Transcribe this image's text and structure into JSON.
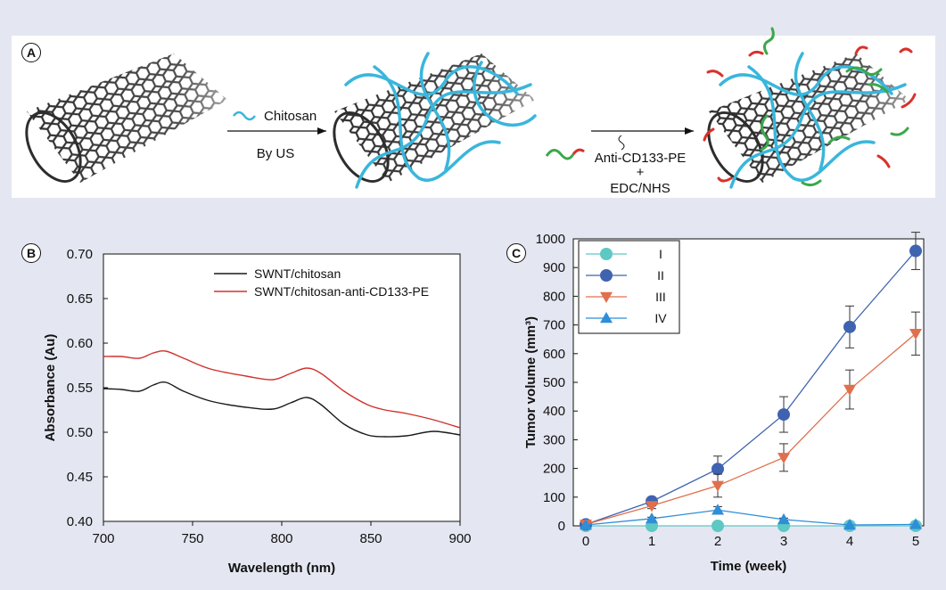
{
  "panel_a": {
    "label": "A",
    "step1_reagent": "Chitosan",
    "step1_condition": "By US",
    "step2_reagent": "Anti-CD133-PE",
    "step2_plus": "+",
    "step2_coupling": "EDC/NHS",
    "colors": {
      "tube": "#333333",
      "chitosan": "#3ab6dc",
      "antibody_green": "#3aa84a",
      "pe_red": "#d9312b"
    }
  },
  "chart_data": [
    {
      "panel": "B",
      "type": "line",
      "xlabel": "Wavelength (nm)",
      "ylabel": "Absorbance (Au)",
      "xlim": [
        700,
        900
      ],
      "ylim": [
        0.4,
        0.7
      ],
      "xticks": [
        "700",
        "750",
        "800",
        "850",
        "900"
      ],
      "yticks": [
        "0.40",
        "0.45",
        "0.50",
        "0.55",
        "0.60",
        "0.65",
        "0.70"
      ],
      "grid": false,
      "legend_position": "top-right",
      "series": [
        {
          "name": "SWNT/chitosan",
          "color": "#1a1a1a",
          "x": [
            700,
            710,
            720,
            728,
            735,
            745,
            760,
            780,
            795,
            805,
            814,
            822,
            835,
            848,
            858,
            870,
            885,
            900
          ],
          "y": [
            0.549,
            0.548,
            0.546,
            0.553,
            0.556,
            0.546,
            0.535,
            0.528,
            0.526,
            0.533,
            0.539,
            0.531,
            0.509,
            0.497,
            0.495,
            0.496,
            0.501,
            0.497
          ]
        },
        {
          "name": "SWNT/chitosan-anti-CD133-PE",
          "color": "#d0312d",
          "x": [
            700,
            710,
            720,
            728,
            735,
            745,
            760,
            780,
            795,
            805,
            814,
            822,
            835,
            848,
            858,
            870,
            885,
            900
          ],
          "y": [
            0.585,
            0.585,
            0.583,
            0.589,
            0.591,
            0.583,
            0.571,
            0.563,
            0.559,
            0.566,
            0.572,
            0.566,
            0.546,
            0.531,
            0.525,
            0.521,
            0.514,
            0.505
          ]
        }
      ]
    },
    {
      "panel": "C",
      "type": "line",
      "xlabel": "Time (week)",
      "ylabel": "Tumor volume (mm³)",
      "xlim": [
        0,
        5
      ],
      "ylim": [
        0,
        1000
      ],
      "xticks": [
        "0",
        "1",
        "2",
        "3",
        "4",
        "5"
      ],
      "yticks": [
        "0",
        "100",
        "200",
        "300",
        "400",
        "500",
        "600",
        "700",
        "800",
        "900",
        "1000"
      ],
      "grid": false,
      "legend_position": "top-left",
      "series": [
        {
          "name": "I",
          "marker": "circle",
          "color": "#5ec8c4",
          "x": [
            0,
            1,
            2,
            3,
            4,
            5
          ],
          "y": [
            0,
            0,
            0,
            0,
            0,
            0
          ],
          "err": [
            0,
            0,
            0,
            0,
            0,
            0
          ]
        },
        {
          "name": "II",
          "marker": "circle",
          "color": "#3f63b0",
          "x": [
            0,
            1,
            2,
            3,
            4,
            5
          ],
          "y": [
            5,
            85,
            198,
            388,
            693,
            958
          ],
          "err": [
            0,
            12,
            45,
            62,
            73,
            65
          ]
        },
        {
          "name": "III",
          "marker": "triangle-down",
          "color": "#e0704d",
          "x": [
            0,
            1,
            2,
            3,
            4,
            5
          ],
          "y": [
            5,
            70,
            140,
            238,
            475,
            670
          ],
          "err": [
            0,
            10,
            40,
            48,
            68,
            75
          ]
        },
        {
          "name": "IV",
          "marker": "triangle-up",
          "color": "#2f8ed8",
          "x": [
            0,
            1,
            2,
            3,
            4,
            5
          ],
          "y": [
            3,
            25,
            55,
            22,
            3,
            5
          ],
          "err": [
            0,
            5,
            12,
            5,
            0,
            0
          ]
        }
      ]
    }
  ]
}
